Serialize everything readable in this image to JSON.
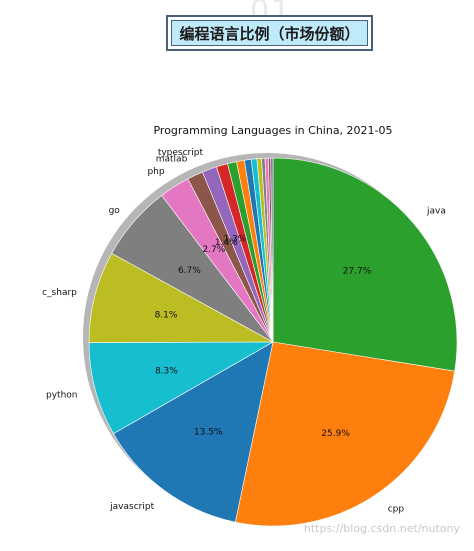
{
  "header": {
    "box_title": "编程语言比例（市场份额）",
    "deco": "01"
  },
  "watermark": "https://blog.csdn.net/nutony",
  "chart_data": {
    "type": "pie",
    "title": "Programming Languages in China, 2021-05",
    "start_angle_deg": 90,
    "direction": "clockwise",
    "shadow": true,
    "slices": [
      {
        "label": "java",
        "value": 27.7,
        "pct_label": "27.7%",
        "color": "#2ca02c"
      },
      {
        "label": "cpp",
        "value": 25.9,
        "pct_label": "25.9%",
        "color": "#ff7f0e"
      },
      {
        "label": "javascript",
        "value": 13.5,
        "pct_label": "13.5%",
        "color": "#1f77b4"
      },
      {
        "label": "python",
        "value": 8.3,
        "pct_label": "8.3%",
        "color": "#17becf"
      },
      {
        "label": "c_sharp",
        "value": 8.1,
        "pct_label": "8.1%",
        "color": "#bcbd22"
      },
      {
        "label": "go",
        "value": 6.7,
        "pct_label": "6.7%",
        "color": "#7f7f7f"
      },
      {
        "label": "php",
        "value": 2.7,
        "pct_label": "2.7%",
        "color": "#e377c2"
      },
      {
        "label": "matlab",
        "value": 1.4,
        "pct_label": "1.4%",
        "color": "#8c564b"
      },
      {
        "label": "typescript",
        "value": 1.3,
        "pct_label": "1.3%",
        "color": "#9467bd"
      },
      {
        "label": "",
        "value": 1.0,
        "pct_label": "",
        "color": "#d62728"
      },
      {
        "label": "",
        "value": 0.8,
        "pct_label": "",
        "color": "#2ca02c"
      },
      {
        "label": "",
        "value": 0.7,
        "pct_label": "",
        "color": "#ff7f0e"
      },
      {
        "label": "",
        "value": 0.6,
        "pct_label": "",
        "color": "#1f77b4"
      },
      {
        "label": "",
        "value": 0.5,
        "pct_label": "",
        "color": "#17becf"
      },
      {
        "label": "",
        "value": 0.4,
        "pct_label": "",
        "color": "#bcbd22"
      },
      {
        "label": "",
        "value": 0.3,
        "pct_label": "",
        "color": "#7f7f7f"
      },
      {
        "label": "",
        "value": 0.3,
        "pct_label": "",
        "color": "#e377c2"
      },
      {
        "label": "",
        "value": 0.2,
        "pct_label": "",
        "color": "#8c564b"
      },
      {
        "label": "",
        "value": 0.2,
        "pct_label": "",
        "color": "#9467bd"
      }
    ]
  }
}
